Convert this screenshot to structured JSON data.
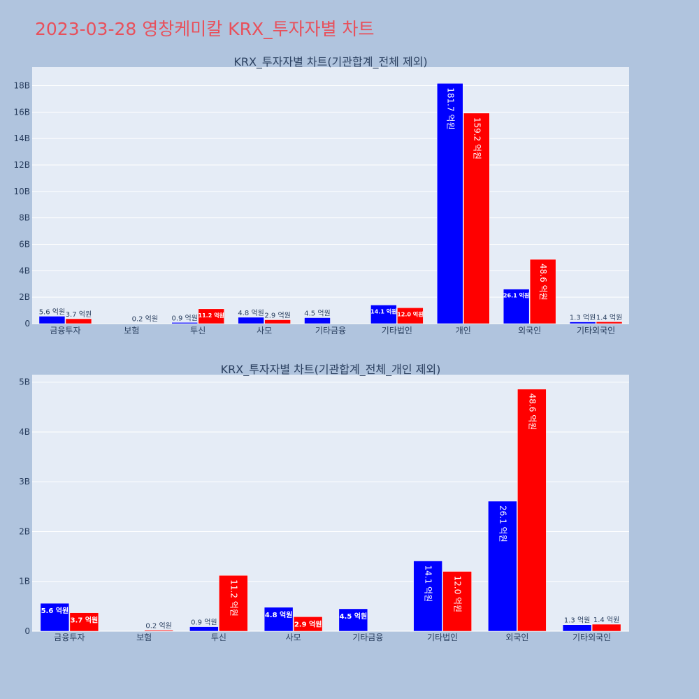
{
  "title": "2023-03-28 영창케미칼 KRX_투자자별 차트",
  "colors": {
    "buy": "#0000ff",
    "sell": "#ff0000",
    "plot_bg": "#e5ecf6",
    "page_bg": "#b0c4de",
    "title": "#e8505b"
  },
  "chart_data": [
    {
      "type": "bar",
      "title": "KRX_투자자별 차트(기관합계_전체 제외)",
      "categories": [
        "금융투자",
        "보험",
        "투신",
        "사모",
        "기타금융",
        "기타법인",
        "개인",
        "외국인",
        "기타외국인"
      ],
      "series": [
        {
          "values": [
            0.56,
            0,
            0.09,
            0.48,
            0.45,
            1.41,
            18.17,
            2.61,
            0.13
          ],
          "labels": [
            "5.6 억원",
            "",
            "0.9 억원",
            "4.8 억원",
            "4.5 억원",
            "14.1 억원",
            "181.7 억원",
            "26.1 억원",
            "1.3 억원"
          ]
        },
        {
          "values": [
            0.37,
            0.02,
            1.12,
            0.29,
            0,
            1.2,
            15.92,
            4.86,
            0.14
          ],
          "labels": [
            "3.7 억원",
            "0.2 억원",
            "11.2 억원",
            "2.9 억원",
            "",
            "12.0 억원",
            "159.2 억원",
            "48.6 억원",
            "1.4 억원"
          ]
        }
      ],
      "yticks": [
        "0",
        "2B",
        "4B",
        "6B",
        "8B",
        "10B",
        "12B",
        "14B",
        "16B",
        "18B"
      ],
      "ytick_values": [
        0,
        2,
        4,
        6,
        8,
        10,
        12,
        14,
        16,
        18
      ],
      "ylim": [
        0,
        19.4
      ],
      "value_unit": "B"
    },
    {
      "type": "bar",
      "title": "KRX_투자자별 차트(기관합계_전체_개인 제외)",
      "categories": [
        "금융투자",
        "보험",
        "투신",
        "사모",
        "기타금융",
        "기타법인",
        "외국인",
        "기타외국인"
      ],
      "series": [
        {
          "values": [
            0.56,
            0,
            0.09,
            0.48,
            0.45,
            1.41,
            2.61,
            0.13
          ],
          "labels": [
            "5.6 억원",
            "",
            "0.9 억원",
            "4.8 억원",
            "4.5 억원",
            "14.1 억원",
            "26.1 억원",
            "1.3 억원"
          ]
        },
        {
          "values": [
            0.37,
            0.02,
            1.12,
            0.29,
            0,
            1.2,
            4.86,
            0.14
          ],
          "labels": [
            "3.7 억원",
            "0.2 억원",
            "11.2 억원",
            "2.9 억원",
            "",
            "12.0 억원",
            "48.6 억원",
            "1.4 억원"
          ]
        }
      ],
      "yticks": [
        "0",
        "1B",
        "2B",
        "3B",
        "4B",
        "5B"
      ],
      "ytick_values": [
        0,
        1,
        2,
        3,
        4,
        5
      ],
      "ylim": [
        0,
        5.15
      ],
      "value_unit": "B"
    }
  ]
}
